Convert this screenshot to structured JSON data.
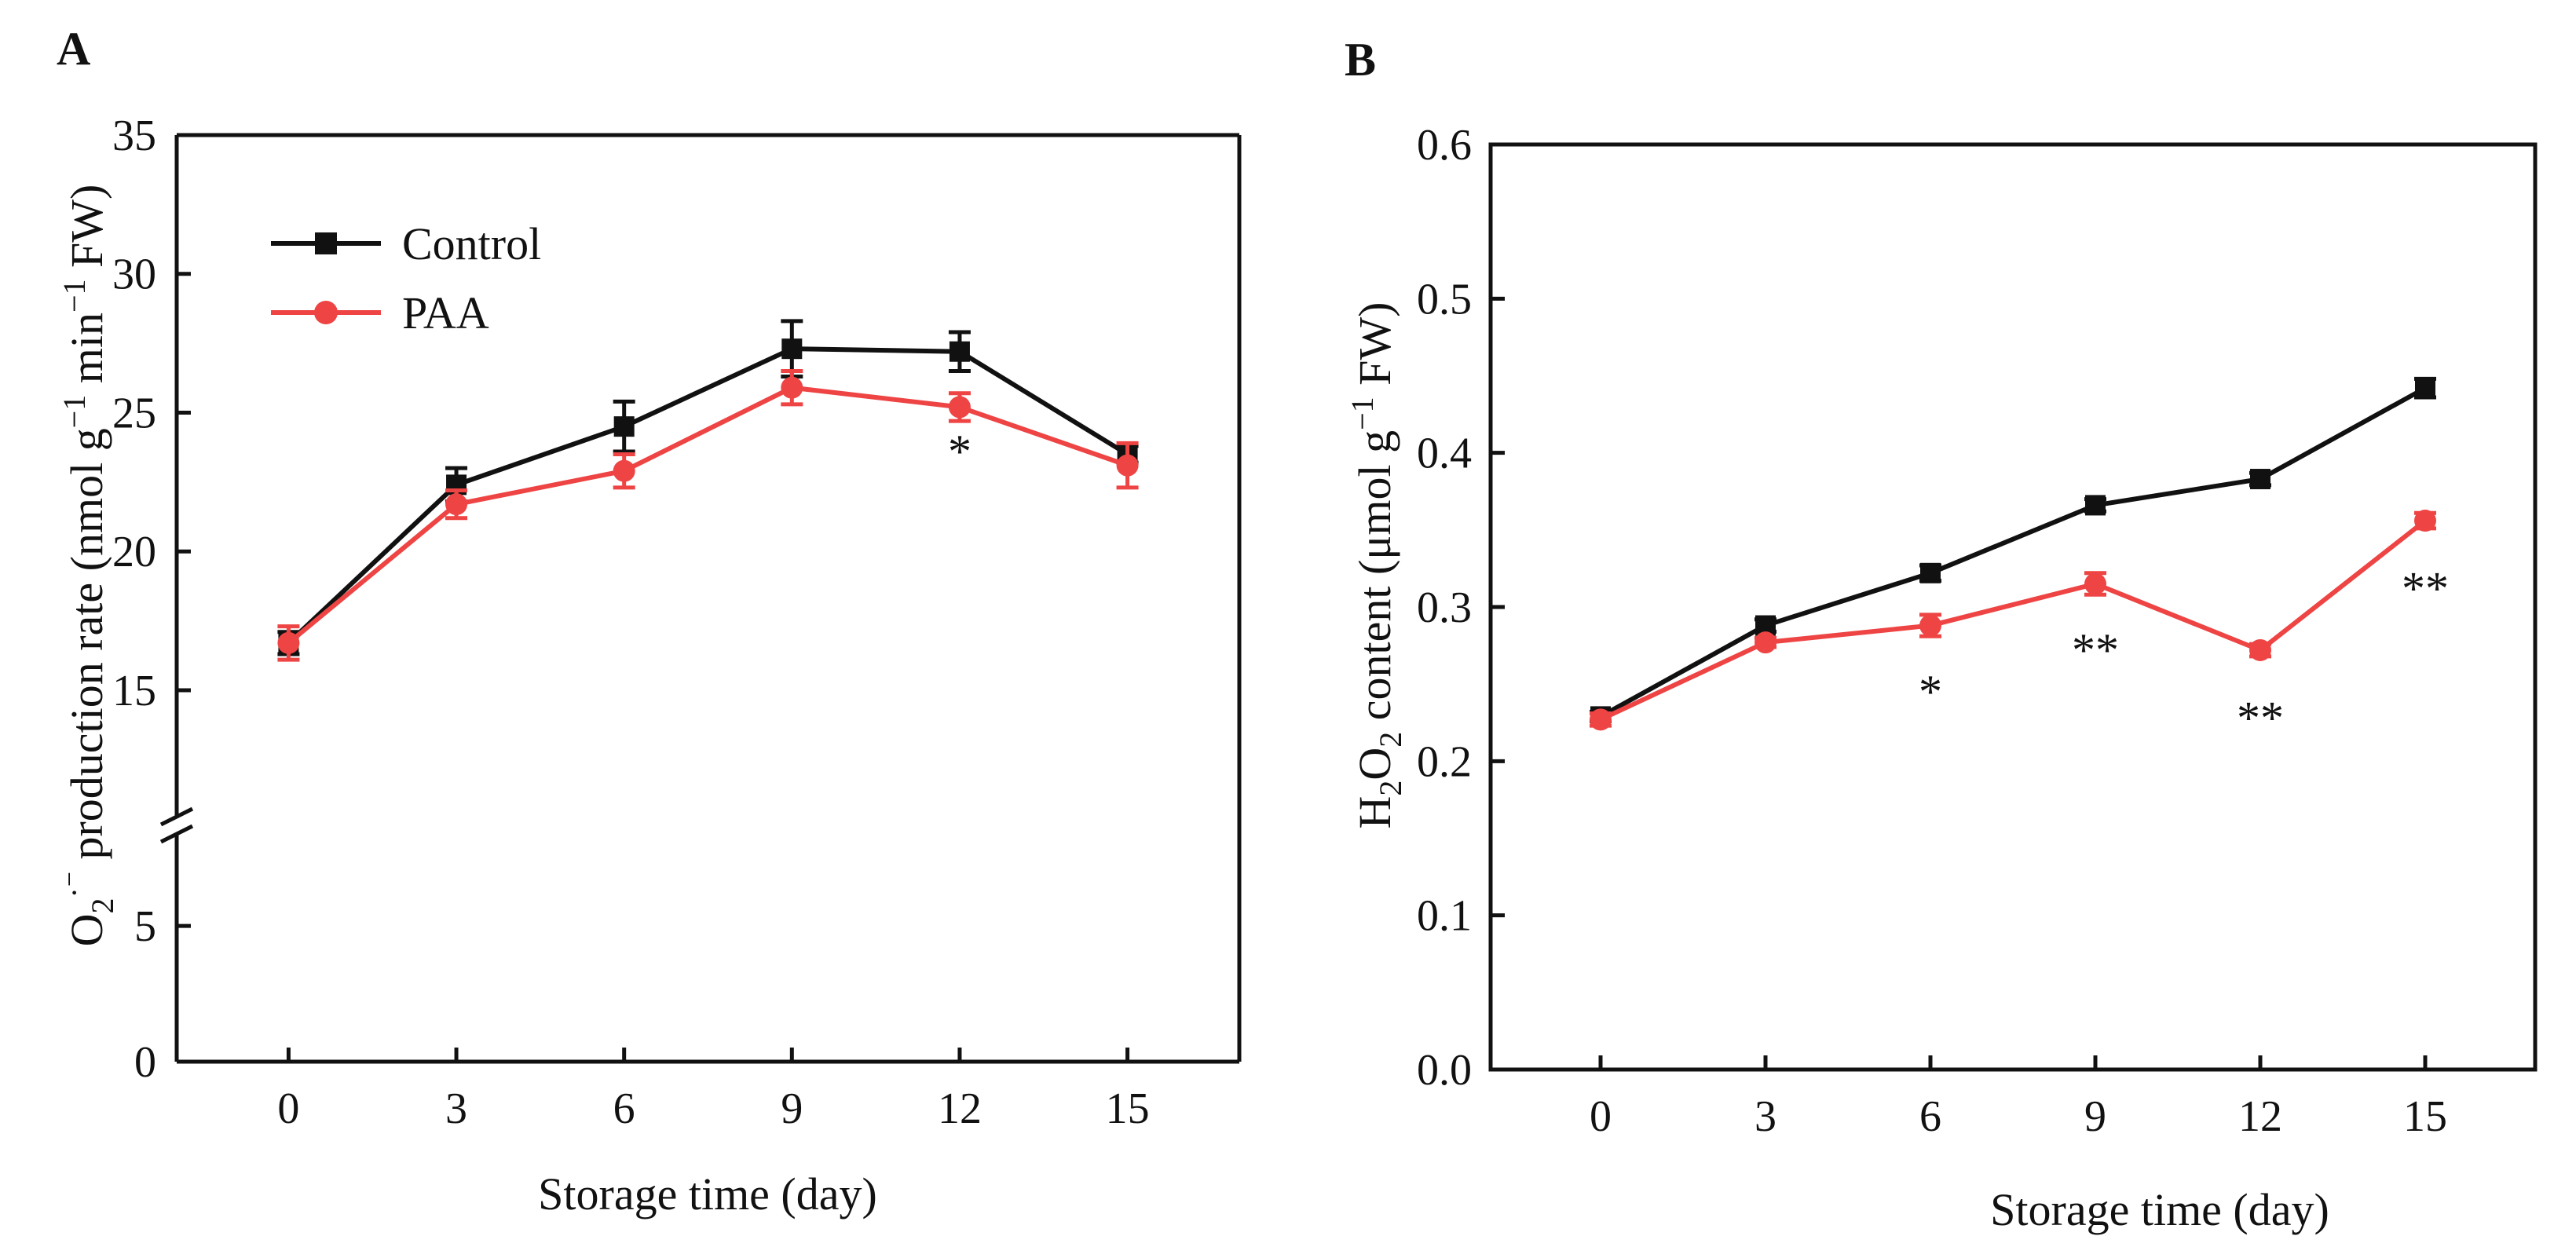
{
  "colors": {
    "control": "#111111",
    "paa": "#ee4444",
    "axis": "#111111"
  },
  "chart_data": [
    {
      "panel": "A",
      "type": "line",
      "title": "",
      "xlabel": "Storage time (day)",
      "ylabel_parts": [
        "O",
        "2",
        "·⁻",
        " production rate (nmol g",
        "−1",
        " min",
        "−1",
        " FW)"
      ],
      "x": [
        0,
        3,
        6,
        9,
        12,
        15
      ],
      "xlim": [
        -2,
        17
      ],
      "ylim_lower": [
        0,
        7
      ],
      "ylim_upper": [
        12,
        35
      ],
      "axis_break": true,
      "y_ticks": [
        0,
        5,
        15,
        20,
        25,
        30,
        35
      ],
      "legend": {
        "placement": "top-left",
        "entries": [
          "Control",
          "PAA"
        ]
      },
      "series": [
        {
          "name": "Control",
          "color": "#111111",
          "marker": "square",
          "values": [
            16.7,
            22.4,
            24.5,
            27.3,
            27.2,
            23.5
          ],
          "errors": [
            0.4,
            0.6,
            0.9,
            1.0,
            0.7,
            0.3
          ]
        },
        {
          "name": "PAA",
          "color": "#ee4444",
          "marker": "circle",
          "values": [
            16.7,
            21.7,
            22.9,
            25.9,
            25.2,
            23.1
          ],
          "errors": [
            0.6,
            0.5,
            0.6,
            0.6,
            0.5,
            0.8
          ]
        }
      ],
      "annotations": [
        {
          "x": 12,
          "y": 23.6,
          "text": "*"
        }
      ]
    },
    {
      "panel": "B",
      "type": "line",
      "title": "",
      "xlabel": "Storage time (day)",
      "ylabel_parts": [
        "H",
        "2",
        "O",
        "2",
        " content (μmol g",
        "−1",
        " FW)"
      ],
      "x": [
        0,
        3,
        6,
        9,
        12,
        15
      ],
      "xlim": [
        -2,
        17
      ],
      "ylim": [
        0,
        0.6
      ],
      "y_ticks": [
        0.0,
        0.1,
        0.2,
        0.3,
        0.4,
        0.5,
        0.6
      ],
      "y_tick_labels": [
        "0.0",
        "0.1",
        "0.2",
        "0.3",
        "0.4",
        "0.5",
        "0.6"
      ],
      "series": [
        {
          "name": "Control",
          "color": "#111111",
          "marker": "square",
          "values": [
            0.229,
            0.288,
            0.322,
            0.366,
            0.383,
            0.442
          ],
          "errors": [
            0.003,
            0.004,
            0.005,
            0.004,
            0.004,
            0.006
          ]
        },
        {
          "name": "PAA",
          "color": "#ee4444",
          "marker": "circle",
          "values": [
            0.227,
            0.277,
            0.288,
            0.315,
            0.272,
            0.356
          ],
          "errors": [
            0.004,
            0.003,
            0.007,
            0.007,
            0.004,
            0.005
          ]
        }
      ],
      "annotations": [
        {
          "x": 6,
          "y": 0.245,
          "text": "*"
        },
        {
          "x": 9,
          "y": 0.272,
          "text": "**"
        },
        {
          "x": 12,
          "y": 0.228,
          "text": "**"
        },
        {
          "x": 15,
          "y": 0.312,
          "text": "**"
        }
      ]
    }
  ]
}
